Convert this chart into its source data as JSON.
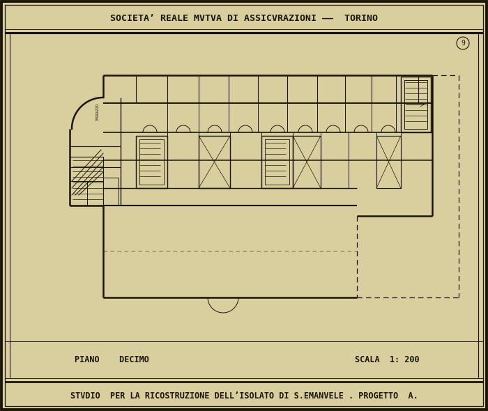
{
  "bg_color": "#d8ce9e",
  "line_color": "#1a1508",
  "title_top": "SOCIETA’ REALE MVTVA DI ASSICVRAZIONI ——  TORINO",
  "title_bottom": "STVDIO  PER LA RICOSTRUZIONE DELL’ISOLATO DI S.EMANVELE . PROGETTO  A.",
  "label_left": "PIANO    DECIMO",
  "label_right": "SCALA  1: 200",
  "page_number": "9"
}
